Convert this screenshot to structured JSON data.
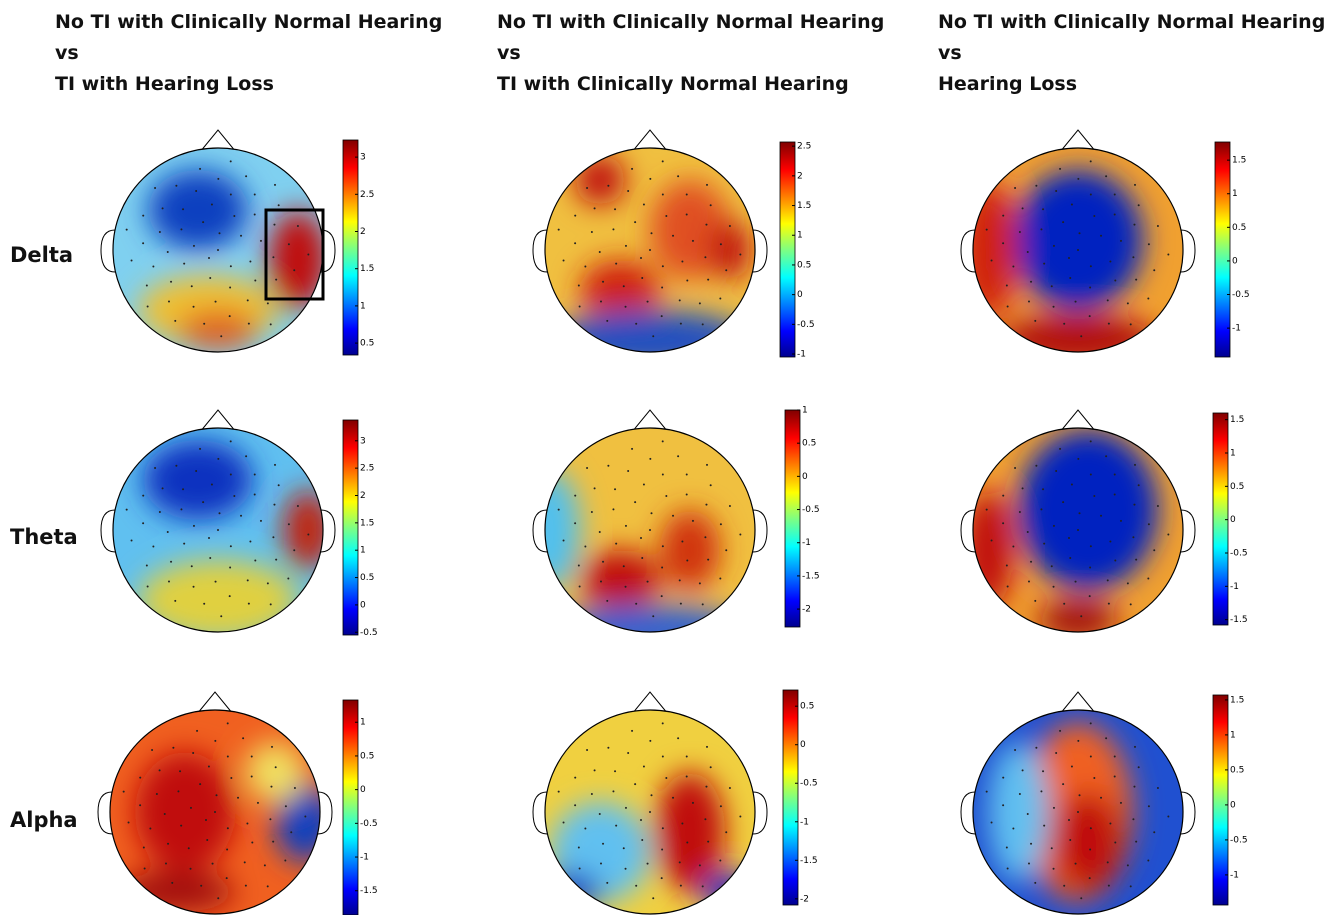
{
  "columns": [
    {
      "title_lines": [
        "No TI with Clinically Normal Hearing",
        "vs",
        "TI with Hearing Loss"
      ]
    },
    {
      "title_lines": [
        "No TI with Clinically Normal Hearing",
        "vs",
        "TI with Clinically Normal Hearing"
      ]
    },
    {
      "title_lines": [
        "No TI with Clinically Normal Hearing",
        "vs",
        "Hearing Loss"
      ]
    }
  ],
  "rows": [
    "Delta",
    "Theta",
    "Alpha"
  ],
  "colorbars": [
    [
      {
        "range": [
          0.34,
          3.23
        ],
        "ticks": [
          0.5,
          1,
          1.5,
          2,
          2.5,
          3
        ]
      },
      {
        "range": [
          -1.05,
          2.57
        ],
        "ticks": [
          -1,
          -0.5,
          0,
          0.5,
          1,
          1.5,
          2,
          2.5
        ]
      },
      {
        "range": [
          -1.43,
          1.77
        ],
        "ticks": [
          -1,
          -0.5,
          0,
          0.5,
          1,
          1.5
        ]
      }
    ],
    [
      {
        "range": [
          -0.55,
          3.38
        ],
        "ticks": [
          -0.5,
          0,
          0.5,
          1,
          1.5,
          2,
          2.5,
          3
        ]
      },
      {
        "range": [
          -2.27,
          1.0
        ],
        "ticks": [
          -2,
          -1.5,
          -1,
          -0.5,
          0,
          0.5,
          1
        ]
      },
      {
        "range": [
          -1.58,
          1.6
        ],
        "ticks": [
          -1.5,
          -1,
          -0.5,
          0,
          0.5,
          1,
          1.5
        ]
      }
    ],
    [
      {
        "range": [
          -1.86,
          1.33
        ],
        "ticks": [
          -1.5,
          -1,
          -0.5,
          0,
          0.5,
          1
        ]
      },
      {
        "range": [
          -2.08,
          0.71
        ],
        "ticks": [
          -2,
          -1.5,
          -1,
          -0.5,
          0,
          0.5
        ]
      },
      {
        "range": [
          -1.43,
          1.57
        ],
        "ticks": [
          -1,
          -0.5,
          0,
          0.5,
          1,
          1.5
        ]
      }
    ]
  ]
}
